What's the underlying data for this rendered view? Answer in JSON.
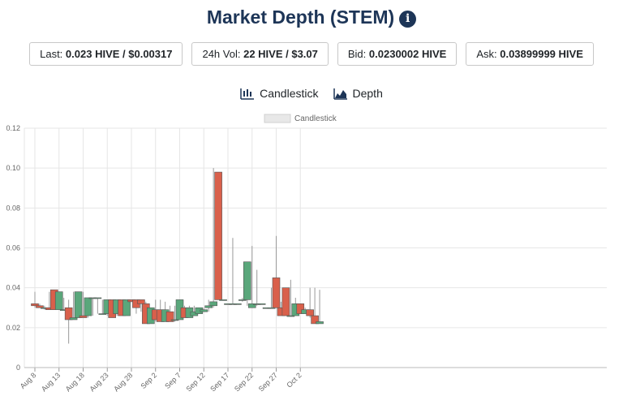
{
  "header": {
    "title": "Market Depth (STEM)",
    "info_icon": "info-icon"
  },
  "stats": {
    "last_label": "Last:",
    "last_value": "0.023 HIVE / $0.00317",
    "vol_label": "24h Vol:",
    "vol_value": "22 HIVE / $3.07",
    "bid_label": "Bid:",
    "bid_value": "0.0230002 HIVE",
    "ask_label": "Ask:",
    "ask_value": "0.03899999 HIVE"
  },
  "tabs": [
    {
      "label": "Candlestick",
      "icon": "candlestick-icon"
    },
    {
      "label": "Depth",
      "icon": "area-chart-icon"
    }
  ],
  "colors": {
    "up": "#5aa77b",
    "down": "#d9604b",
    "wick": "#999999",
    "grid": "#e6e6e6",
    "title": "#1d3557"
  },
  "chart_data": {
    "type": "candlestick",
    "title": "",
    "legend": [
      "Candlestick"
    ],
    "legend_position": "top",
    "grid": true,
    "ylim": [
      0,
      0.12
    ],
    "y_ticks": [
      "0",
      "0.02",
      "0.04",
      "0.06",
      "0.08",
      "0.10",
      "0.12"
    ],
    "x_ticks": [
      "Aug 8",
      "Aug 13",
      "Aug 18",
      "Aug 23",
      "Aug 28",
      "Sep 2",
      "Sep 7",
      "Sep 12",
      "Sep 17",
      "Sep 22",
      "Sep 27",
      "Oct 2"
    ],
    "candles": [
      {
        "date": "Aug 8",
        "open": 0.032,
        "high": 0.038,
        "low": 0.03,
        "close": 0.031
      },
      {
        "date": "Aug 9",
        "open": 0.031,
        "high": 0.032,
        "low": 0.03,
        "close": 0.03
      },
      {
        "date": "Aug 10",
        "open": 0.03,
        "high": 0.031,
        "low": 0.029,
        "close": 0.03
      },
      {
        "date": "Aug 11",
        "open": 0.03,
        "high": 0.038,
        "low": 0.029,
        "close": 0.029
      },
      {
        "date": "Aug 12",
        "open": 0.039,
        "high": 0.039,
        "low": 0.029,
        "close": 0.029
      },
      {
        "date": "Aug 13",
        "open": 0.029,
        "high": 0.038,
        "low": 0.029,
        "close": 0.038
      },
      {
        "date": "Aug 14",
        "open": 0.029,
        "high": 0.035,
        "low": 0.029,
        "close": 0.029
      },
      {
        "date": "Aug 15",
        "open": 0.03,
        "high": 0.034,
        "low": 0.012,
        "close": 0.024
      },
      {
        "date": "Aug 16",
        "open": 0.024,
        "high": 0.038,
        "low": 0.024,
        "close": 0.025
      },
      {
        "date": "Aug 17",
        "open": 0.025,
        "high": 0.038,
        "low": 0.025,
        "close": 0.038
      },
      {
        "date": "Aug 18",
        "open": 0.026,
        "high": 0.038,
        "low": 0.025,
        "close": 0.025
      },
      {
        "date": "Aug 19",
        "open": 0.026,
        "high": 0.035,
        "low": 0.025,
        "close": 0.035
      },
      {
        "date": "Aug 20",
        "open": 0.035,
        "high": 0.035,
        "low": 0.026,
        "close": 0.035
      },
      {
        "date": "Aug 21",
        "open": 0.035,
        "high": 0.035,
        "low": 0.027,
        "close": 0.035
      },
      {
        "date": "Aug 22",
        "open": 0.027,
        "high": 0.034,
        "low": 0.027,
        "close": 0.027
      },
      {
        "date": "Aug 23",
        "open": 0.027,
        "high": 0.034,
        "low": 0.026,
        "close": 0.034
      },
      {
        "date": "Aug 24",
        "open": 0.034,
        "high": 0.034,
        "low": 0.025,
        "close": 0.025
      },
      {
        "date": "Aug 25",
        "open": 0.027,
        "high": 0.034,
        "low": 0.026,
        "close": 0.034
      },
      {
        "date": "Aug 26",
        "open": 0.034,
        "high": 0.034,
        "low": 0.026,
        "close": 0.026
      },
      {
        "date": "Aug 27",
        "open": 0.026,
        "high": 0.034,
        "low": 0.026,
        "close": 0.034
      },
      {
        "date": "Aug 28",
        "open": 0.034,
        "high": 0.034,
        "low": 0.033,
        "close": 0.033
      },
      {
        "date": "Aug 29",
        "open": 0.034,
        "high": 0.034,
        "low": 0.027,
        "close": 0.03
      },
      {
        "date": "Aug 30",
        "open": 0.034,
        "high": 0.034,
        "low": 0.028,
        "close": 0.032
      },
      {
        "date": "Aug 31",
        "open": 0.032,
        "high": 0.033,
        "low": 0.022,
        "close": 0.022
      },
      {
        "date": "Sep 1",
        "open": 0.022,
        "high": 0.03,
        "low": 0.022,
        "close": 0.03
      },
      {
        "date": "Sep 2",
        "open": 0.029,
        "high": 0.034,
        "low": 0.023,
        "close": 0.024
      },
      {
        "date": "Sep 3",
        "open": 0.029,
        "high": 0.034,
        "low": 0.023,
        "close": 0.023
      },
      {
        "date": "Sep 4",
        "open": 0.023,
        "high": 0.033,
        "low": 0.023,
        "close": 0.029
      },
      {
        "date": "Sep 5",
        "open": 0.028,
        "high": 0.031,
        "low": 0.023,
        "close": 0.023
      },
      {
        "date": "Sep 6",
        "open": 0.024,
        "high": 0.031,
        "low": 0.023,
        "close": 0.024
      },
      {
        "date": "Sep 7",
        "open": 0.024,
        "high": 0.034,
        "low": 0.024,
        "close": 0.034
      },
      {
        "date": "Sep 8",
        "open": 0.03,
        "high": 0.031,
        "low": 0.025,
        "close": 0.025
      },
      {
        "date": "Sep 9",
        "open": 0.025,
        "high": 0.031,
        "low": 0.025,
        "close": 0.03
      },
      {
        "date": "Sep 10",
        "open": 0.026,
        "high": 0.031,
        "low": 0.026,
        "close": 0.028
      },
      {
        "date": "Sep 11",
        "open": 0.027,
        "high": 0.03,
        "low": 0.027,
        "close": 0.03
      },
      {
        "date": "Sep 12",
        "open": 0.028,
        "high": 0.03,
        "low": 0.028,
        "close": 0.029
      },
      {
        "date": "Sep 13",
        "open": 0.03,
        "high": 0.034,
        "low": 0.028,
        "close": 0.031
      },
      {
        "date": "Sep 14",
        "open": 0.031,
        "high": 0.1,
        "low": 0.03,
        "close": 0.033
      },
      {
        "date": "Sep 15",
        "open": 0.098,
        "high": 0.098,
        "low": 0.034,
        "close": 0.034
      },
      {
        "date": "Sep 16",
        "open": 0.034,
        "high": 0.034,
        "low": 0.034,
        "close": 0.034
      },
      {
        "date": "Sep 17",
        "open": 0.032,
        "high": 0.032,
        "low": 0.032,
        "close": 0.032
      },
      {
        "date": "Sep 18",
        "open": 0.032,
        "high": 0.065,
        "low": 0.032,
        "close": 0.032
      },
      {
        "date": "Sep 19",
        "open": 0.032,
        "high": 0.032,
        "low": 0.032,
        "close": 0.032
      },
      {
        "date": "Sep 20",
        "open": 0.034,
        "high": 0.035,
        "low": 0.033,
        "close": 0.034
      },
      {
        "date": "Sep 21",
        "open": 0.034,
        "high": 0.053,
        "low": 0.031,
        "close": 0.053
      },
      {
        "date": "Sep 22",
        "open": 0.03,
        "high": 0.061,
        "low": 0.03,
        "close": 0.032
      },
      {
        "date": "Sep 23",
        "open": 0.032,
        "high": 0.049,
        "low": 0.031,
        "close": 0.032
      },
      {
        "date": "Sep 24",
        "open": 0.032,
        "high": 0.032,
        "low": 0.032,
        "close": 0.032
      },
      {
        "date": "Sep 25",
        "open": 0.03,
        "high": 0.03,
        "low": 0.03,
        "close": 0.03
      },
      {
        "date": "Sep 26",
        "open": 0.03,
        "high": 0.04,
        "low": 0.03,
        "close": 0.03
      },
      {
        "date": "Sep 27",
        "open": 0.045,
        "high": 0.066,
        "low": 0.03,
        "close": 0.03
      },
      {
        "date": "Sep 28",
        "open": 0.03,
        "high": 0.033,
        "low": 0.026,
        "close": 0.026
      },
      {
        "date": "Sep 29",
        "open": 0.04,
        "high": 0.04,
        "low": 0.026,
        "close": 0.026
      },
      {
        "date": "Sep 30",
        "open": 0.026,
        "high": 0.044,
        "low": 0.026,
        "close": 0.026
      },
      {
        "date": "Oct 1",
        "open": 0.026,
        "high": 0.035,
        "low": 0.026,
        "close": 0.032
      },
      {
        "date": "Oct 2",
        "open": 0.032,
        "high": 0.032,
        "low": 0.027,
        "close": 0.027
      },
      {
        "date": "Oct 3",
        "open": 0.027,
        "high": 0.03,
        "low": 0.027,
        "close": 0.029
      },
      {
        "date": "Oct 4",
        "open": 0.029,
        "high": 0.04,
        "low": 0.025,
        "close": 0.026
      },
      {
        "date": "Oct 5",
        "open": 0.026,
        "high": 0.04,
        "low": 0.022,
        "close": 0.022
      },
      {
        "date": "Oct 6",
        "open": 0.022,
        "high": 0.039,
        "low": 0.022,
        "close": 0.023
      }
    ]
  }
}
